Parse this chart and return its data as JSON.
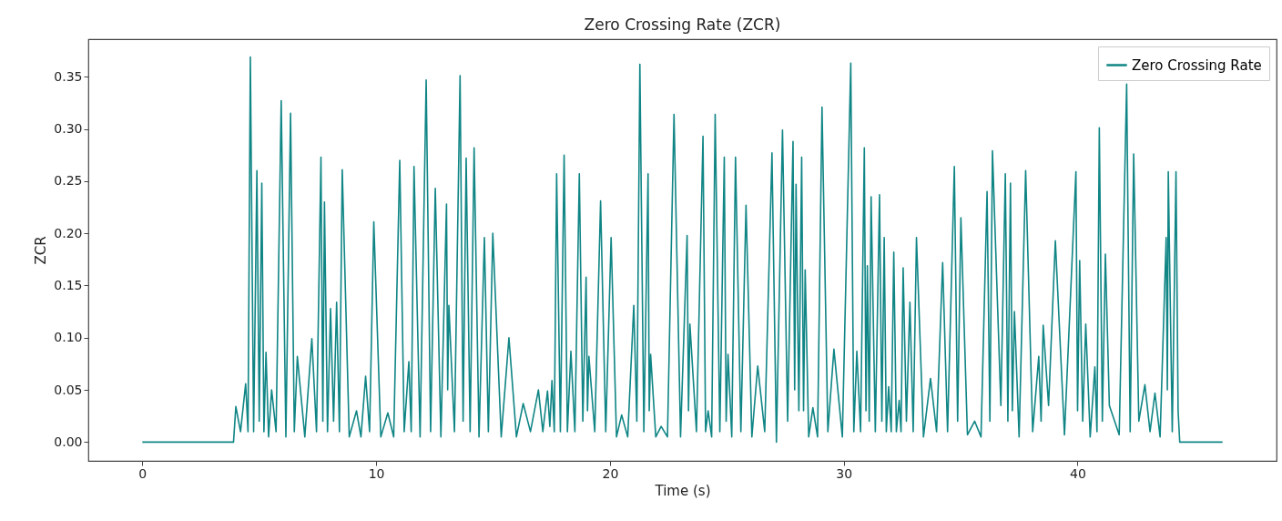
{
  "chart_data": {
    "type": "line",
    "title": "Zero Crossing Rate (ZCR)",
    "xlabel": "Time (s)",
    "ylabel": "ZCR",
    "xlim": [
      -2.31,
      48.51
    ],
    "xticks": [
      0,
      10,
      20,
      30,
      40
    ],
    "ylim": [
      -0.018,
      0.386
    ],
    "yticks": [
      {
        "value": 0,
        "label": "0.00"
      },
      0.05,
      {
        "value": 0.1,
        "label": "0.10"
      },
      0.15,
      {
        "value": 0.2,
        "label": "0.20"
      },
      0.25,
      {
        "value": 0.3,
        "label": "0.30"
      },
      0.35
    ],
    "grid": false,
    "legend": "top right",
    "marker": "none",
    "line_style": "solid",
    "series": [
      {
        "name": "Zero Crossing Rate",
        "color": "#108585",
        "x": [
          0,
          3.9,
          4.0,
          4.2,
          4.42,
          4.52,
          4.62,
          4.76,
          4.9,
          5.0,
          5.11,
          5.2,
          5.29,
          5.4,
          5.53,
          5.72,
          5.94,
          6.14,
          6.34,
          6.5,
          6.63,
          6.95,
          7.25,
          7.45,
          7.64,
          7.72,
          7.79,
          7.92,
          8.05,
          8.18,
          8.31,
          8.43,
          8.55,
          8.85,
          9.16,
          9.35,
          9.55,
          9.72,
          9.9,
          10.2,
          10.5,
          10.75,
          11.01,
          11.2,
          11.4,
          11.5,
          11.62,
          11.88,
          12.14,
          12.33,
          12.53,
          12.77,
          13.01,
          13.06,
          13.11,
          13.35,
          13.59,
          13.72,
          13.85,
          14.02,
          14.19,
          14.4,
          14.63,
          14.8,
          14.99,
          15.35,
          15.68,
          16.0,
          16.29,
          16.6,
          16.94,
          17.13,
          17.33,
          17.43,
          17.52,
          17.62,
          17.72,
          17.88,
          18.04,
          18.18,
          18.33,
          18.5,
          18.69,
          18.84,
          18.98,
          19.04,
          19.1,
          19.35,
          19.6,
          19.82,
          20.05,
          20.28,
          20.5,
          20.76,
          21.02,
          21.15,
          21.28,
          21.45,
          21.63,
          21.68,
          21.74,
          21.96,
          22.19,
          22.46,
          22.74,
          23.02,
          23.3,
          23.36,
          23.42,
          23.7,
          23.98,
          24.09,
          24.2,
          24.35,
          24.5,
          24.7,
          24.89,
          24.97,
          25.05,
          25.21,
          25.37,
          25.6,
          25.82,
          26.07,
          26.32,
          26.62,
          26.93,
          27.12,
          27.38,
          27.6,
          27.83,
          27.9,
          27.96,
          28.08,
          28.2,
          28.28,
          28.35,
          28.5,
          28.68,
          28.88,
          29.07,
          29.32,
          29.58,
          29.94,
          30.3,
          30.43,
          30.56,
          30.72,
          30.88,
          30.95,
          31.01,
          31.09,
          31.17,
          31.35,
          31.53,
          31.63,
          31.73,
          31.82,
          31.92,
          32.03,
          32.14,
          32.25,
          32.37,
          32.45,
          32.54,
          32.68,
          32.83,
          32.97,
          33.11,
          33.41,
          33.71,
          33.97,
          34.23,
          34.44,
          34.73,
          34.87,
          35.01,
          35.29,
          35.6,
          35.87,
          36.13,
          36.25,
          36.36,
          36.72,
          36.91,
          37.02,
          37.13,
          37.21,
          37.3,
          37.5,
          37.78,
          38.08,
          38.34,
          38.44,
          38.53,
          38.76,
          39.05,
          39.44,
          39.93,
          40.0,
          40.09,
          40.22,
          40.35,
          40.54,
          40.74,
          40.83,
          40.93,
          41.06,
          41.19,
          41.36,
          41.78,
          42.1,
          42.25,
          42.4,
          42.62,
          42.88,
          43.1,
          43.31,
          43.53,
          43.79,
          43.84,
          43.88,
          44.05,
          44.21,
          44.3,
          44.37,
          46.2
        ],
        "values": [
          0,
          0,
          0.034,
          0.01,
          0.056,
          0.01,
          0.369,
          0.01,
          0.26,
          0.02,
          0.248,
          0.01,
          0.086,
          0.005,
          0.05,
          0.01,
          0.327,
          0.005,
          0.315,
          0.01,
          0.082,
          0.005,
          0.099,
          0.01,
          0.273,
          0.02,
          0.23,
          0.01,
          0.128,
          0.02,
          0.134,
          0.01,
          0.261,
          0.005,
          0.03,
          0.005,
          0.063,
          0.01,
          0.211,
          0.005,
          0.028,
          0.005,
          0.27,
          0.01,
          0.077,
          0.01,
          0.264,
          0.005,
          0.347,
          0.01,
          0.243,
          0.005,
          0.228,
          0.05,
          0.131,
          0.01,
          0.351,
          0.02,
          0.272,
          0.01,
          0.282,
          0.005,
          0.196,
          0.01,
          0.2,
          0.005,
          0.1,
          0.005,
          0.037,
          0.01,
          0.05,
          0.01,
          0.049,
          0.015,
          0.059,
          0.01,
          0.257,
          0.01,
          0.275,
          0.01,
          0.087,
          0.01,
          0.257,
          0.02,
          0.158,
          0.03,
          0.082,
          0.01,
          0.231,
          0.01,
          0.196,
          0.005,
          0.026,
          0.005,
          0.131,
          0.02,
          0.362,
          0.01,
          0.257,
          0.03,
          0.084,
          0.005,
          0.015,
          0.005,
          0.314,
          0.005,
          0.198,
          0.03,
          0.113,
          0.01,
          0.293,
          0.01,
          0.03,
          0.005,
          0.314,
          0.01,
          0.273,
          0.02,
          0.084,
          0.005,
          0.273,
          0.01,
          0.227,
          0.005,
          0.073,
          0.01,
          0.277,
          0,
          0.299,
          0.02,
          0.288,
          0.05,
          0.247,
          0.03,
          0.273,
          0.03,
          0.165,
          0.005,
          0.033,
          0.005,
          0.321,
          0.01,
          0.089,
          0.005,
          0.363,
          0.01,
          0.087,
          0.01,
          0.282,
          0.03,
          0.169,
          0.02,
          0.235,
          0.01,
          0.237,
          0.02,
          0.196,
          0.01,
          0.053,
          0.01,
          0.182,
          0.01,
          0.04,
          0.01,
          0.167,
          0.02,
          0.134,
          0.01,
          0.196,
          0.005,
          0.061,
          0.01,
          0.172,
          0.01,
          0.264,
          0.02,
          0.215,
          0.007,
          0.02,
          0.005,
          0.24,
          0.02,
          0.279,
          0.035,
          0.257,
          0.02,
          0.248,
          0.03,
          0.125,
          0.005,
          0.26,
          0.01,
          0.082,
          0.02,
          0.112,
          0.035,
          0.193,
          0.007,
          0.259,
          0.03,
          0.174,
          0.02,
          0.113,
          0.005,
          0.072,
          0.01,
          0.301,
          0.02,
          0.18,
          0.035,
          0.007,
          0.343,
          0.01,
          0.276,
          0.02,
          0.055,
          0.01,
          0.047,
          0.005,
          0.196,
          0.05,
          0.259,
          0.01,
          0.259,
          0.03,
          0,
          0
        ]
      }
    ]
  }
}
